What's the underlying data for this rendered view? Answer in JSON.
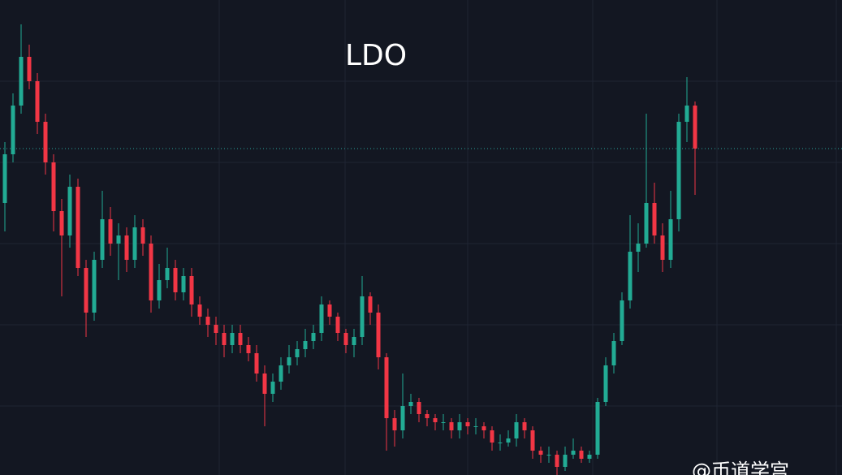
{
  "chart_data": {
    "type": "candlestick",
    "title": "LDO",
    "watermark": "@币道学宫",
    "up_color": "#22ab94",
    "down_color": "#f23645",
    "ylim": [
      0,
      585
    ],
    "open": [
      335,
      395,
      455,
      515,
      485,
      435,
      385,
      325,
      295,
      355,
      255,
      200,
      265,
      315,
      285,
      295,
      265,
      305,
      285,
      215,
      240,
      255,
      225,
      245,
      210,
      195,
      185,
      175,
      160,
      175,
      160,
      150,
      125,
      100,
      115,
      135,
      145,
      155,
      165,
      175,
      210,
      195,
      175,
      160,
      170,
      220,
      200,
      145,
      70,
      55,
      85,
      90,
      75,
      70,
      65,
      65,
      55,
      65,
      60,
      60,
      55,
      40,
      40,
      45,
      65,
      55,
      30,
      25,
      25,
      10,
      25,
      30,
      20,
      25,
      90,
      135,
      165,
      215,
      275,
      285,
      335,
      295,
      265,
      315,
      435,
      455
    ],
    "high": [
      410,
      470,
      555,
      530,
      495,
      445,
      395,
      340,
      370,
      365,
      265,
      275,
      350,
      330,
      310,
      305,
      320,
      315,
      295,
      260,
      280,
      265,
      255,
      255,
      220,
      205,
      195,
      185,
      185,
      185,
      170,
      160,
      135,
      125,
      145,
      160,
      165,
      180,
      185,
      220,
      215,
      200,
      180,
      180,
      245,
      225,
      210,
      150,
      80,
      125,
      100,
      95,
      80,
      75,
      75,
      70,
      75,
      70,
      70,
      65,
      60,
      50,
      55,
      75,
      70,
      60,
      35,
      35,
      30,
      35,
      45,
      35,
      30,
      95,
      145,
      175,
      225,
      320,
      310,
      445,
      360,
      310,
      350,
      445,
      490,
      460
    ],
    "low": [
      300,
      385,
      445,
      475,
      420,
      370,
      300,
      220,
      280,
      245,
      170,
      190,
      255,
      270,
      240,
      250,
      255,
      270,
      200,
      205,
      230,
      215,
      215,
      195,
      185,
      170,
      160,
      145,
      150,
      150,
      140,
      115,
      60,
      90,
      105,
      125,
      135,
      145,
      155,
      165,
      185,
      165,
      150,
      145,
      160,
      185,
      130,
      30,
      35,
      45,
      75,
      65,
      60,
      55,
      55,
      45,
      45,
      50,
      50,
      45,
      30,
      30,
      35,
      35,
      45,
      20,
      15,
      15,
      0,
      5,
      20,
      15,
      15,
      20,
      85,
      125,
      160,
      205,
      250,
      280,
      285,
      250,
      255,
      300,
      410,
      345
    ],
    "close": [
      395,
      455,
      515,
      485,
      435,
      385,
      325,
      295,
      355,
      255,
      200,
      265,
      315,
      285,
      295,
      265,
      305,
      285,
      215,
      240,
      255,
      225,
      245,
      210,
      195,
      185,
      175,
      160,
      175,
      160,
      150,
      125,
      100,
      115,
      135,
      145,
      155,
      165,
      175,
      210,
      195,
      175,
      160,
      170,
      220,
      200,
      145,
      70,
      55,
      85,
      90,
      75,
      70,
      65,
      65,
      55,
      65,
      60,
      60,
      55,
      40,
      40,
      45,
      65,
      55,
      30,
      25,
      25,
      10,
      25,
      30,
      20,
      25,
      90,
      135,
      165,
      215,
      275,
      285,
      335,
      295,
      265,
      315,
      435,
      455,
      402
    ]
  }
}
